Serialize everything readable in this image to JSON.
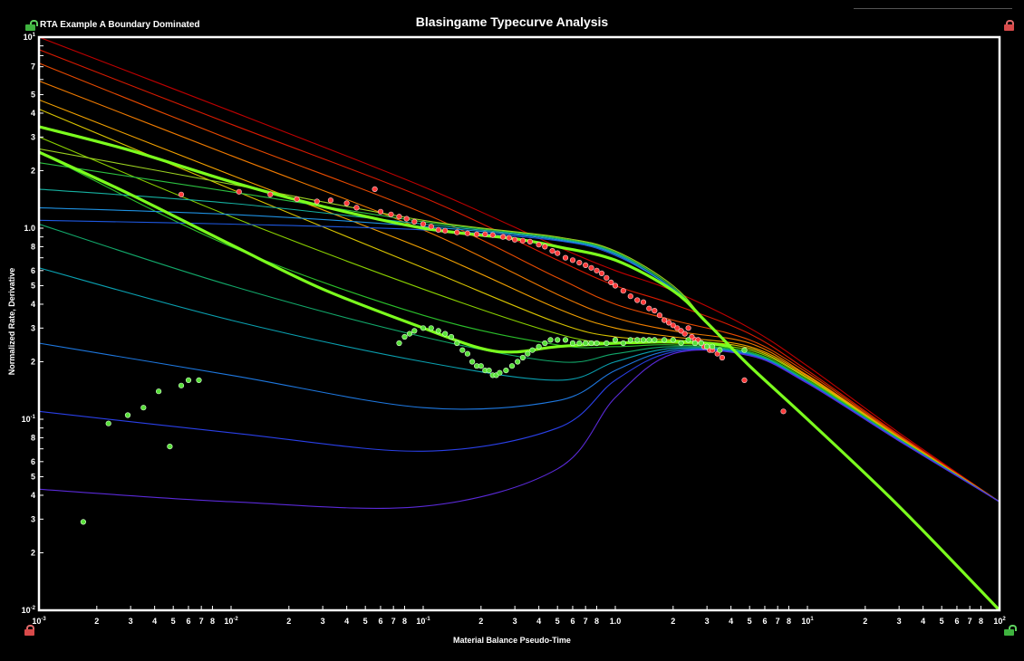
{
  "window": {
    "chart_title": "Blasingame Typecurve Analysis",
    "subtitle": "RTA Example A Boundary Dominated",
    "lock_top_left": "unlocked-icon",
    "lock_top_right": "locked-icon",
    "lock_bottom_left": "locked-icon",
    "lock_bottom_right": "unlocked-icon"
  },
  "chart_data": {
    "type": "scatter",
    "title": "Blasingame Typecurve Analysis",
    "xlabel": "Material Balance Pseudo-Time",
    "ylabel": "Normalized Rate, Derivative",
    "xscale": "log",
    "yscale": "log",
    "xlim": [
      0.001,
      100
    ],
    "ylim": [
      0.01,
      10
    ],
    "grid": false,
    "x_tick_labels": [
      "10-3",
      "2",
      "3",
      "4",
      "5",
      "6",
      "7",
      "8",
      "10-2",
      "2",
      "3",
      "4",
      "5",
      "6",
      "7",
      "8",
      "10-1",
      "2",
      "3",
      "4",
      "5",
      "6",
      "7",
      "8",
      "1.0",
      "2",
      "3",
      "4",
      "5",
      "6",
      "7",
      "8",
      "101",
      "2",
      "3",
      "4",
      "5",
      "6",
      "7",
      "8",
      "102"
    ],
    "y_tick_labels": [
      "10-2",
      "2",
      "3",
      "4",
      "5",
      "6",
      "8",
      "10-1",
      "2",
      "3",
      "4",
      "5",
      "6",
      "8",
      "1.0",
      "2",
      "3",
      "4",
      "5",
      "7",
      "101"
    ],
    "colors": {
      "background": "#000000",
      "frame": "#ffffff",
      "rate_points": "#ff3b3b",
      "derivative_points": "#59e03a",
      "matched_curves": "#7cff1e"
    },
    "rate_typecurves": [
      {
        "color": "#c00000",
        "t": [
          0.001,
          0.01,
          0.1,
          0.5,
          1,
          2,
          5,
          10,
          30,
          100
        ],
        "y": [
          10.0,
          4.1,
          1.65,
          0.8,
          0.6,
          0.47,
          0.3,
          0.19,
          0.085,
          0.037
        ]
      },
      {
        "color": "#d81a00",
        "t": [
          0.001,
          0.01,
          0.1,
          0.5,
          1,
          2,
          5,
          10,
          30,
          100
        ],
        "y": [
          8.6,
          3.5,
          1.45,
          0.68,
          0.5,
          0.4,
          0.28,
          0.18,
          0.083,
          0.037
        ]
      },
      {
        "color": "#e84a00",
        "t": [
          0.001,
          0.01,
          0.1,
          0.5,
          1,
          2,
          5,
          10,
          30,
          100
        ],
        "y": [
          7.3,
          2.9,
          1.2,
          0.55,
          0.4,
          0.33,
          0.26,
          0.175,
          0.082,
          0.037
        ]
      },
      {
        "color": "#ef7a00",
        "t": [
          0.001,
          0.01,
          0.1,
          0.5,
          1,
          2,
          5,
          10,
          30,
          100
        ],
        "y": [
          5.9,
          2.4,
          0.98,
          0.45,
          0.34,
          0.29,
          0.25,
          0.17,
          0.081,
          0.037
        ]
      },
      {
        "color": "#f3a200",
        "t": [
          0.001,
          0.01,
          0.1,
          0.5,
          1,
          2,
          5,
          10,
          30,
          100
        ],
        "y": [
          4.7,
          1.9,
          0.78,
          0.38,
          0.3,
          0.27,
          0.24,
          0.168,
          0.08,
          0.037
        ]
      },
      {
        "color": "#d8c400",
        "t": [
          0.001,
          0.01,
          0.1,
          0.5,
          1,
          2,
          5,
          10,
          30,
          100
        ],
        "y": [
          4.2,
          1.6,
          0.62,
          0.32,
          0.27,
          0.26,
          0.235,
          0.165,
          0.08,
          0.037
        ]
      },
      {
        "color": "#8ad000",
        "t": [
          0.001,
          0.01,
          0.1,
          0.5,
          1,
          2,
          5,
          10,
          30,
          100
        ],
        "y": [
          3.0,
          1.15,
          0.48,
          0.28,
          0.25,
          0.25,
          0.23,
          0.163,
          0.079,
          0.037
        ]
      },
      {
        "color": "#2bbf2b",
        "t": [
          0.001,
          0.01,
          0.1,
          0.5,
          1,
          2,
          5,
          10,
          30,
          100
        ],
        "y": [
          2.5,
          0.8,
          0.35,
          0.245,
          0.24,
          0.245,
          0.225,
          0.16,
          0.079,
          0.037
        ]
      },
      {
        "color": "#12a86a",
        "t": [
          0.001,
          0.01,
          0.1,
          0.5,
          1,
          2,
          5,
          10,
          30,
          100
        ],
        "y": [
          1.05,
          0.5,
          0.27,
          0.2,
          0.22,
          0.24,
          0.222,
          0.158,
          0.078,
          0.037
        ]
      },
      {
        "color": "#0aa0b0",
        "t": [
          0.001,
          0.01,
          0.1,
          0.5,
          1,
          2,
          5,
          10,
          30,
          100
        ],
        "y": [
          0.62,
          0.33,
          0.2,
          0.16,
          0.2,
          0.235,
          0.22,
          0.157,
          0.078,
          0.037
        ]
      },
      {
        "color": "#1e78e0",
        "t": [
          0.001,
          0.01,
          0.1,
          0.5,
          1,
          2,
          5,
          10,
          30,
          100
        ],
        "y": [
          0.25,
          0.17,
          0.115,
          0.125,
          0.18,
          0.23,
          0.218,
          0.156,
          0.078,
          0.037
        ]
      },
      {
        "color": "#2a40e8",
        "t": [
          0.001,
          0.01,
          0.1,
          0.5,
          1,
          2,
          5,
          10,
          30,
          100
        ],
        "y": [
          0.11,
          0.085,
          0.068,
          0.09,
          0.16,
          0.225,
          0.216,
          0.155,
          0.077,
          0.037
        ]
      },
      {
        "color": "#5a2ad8",
        "t": [
          0.001,
          0.01,
          0.1,
          0.5,
          1,
          2,
          5,
          10,
          30,
          100
        ],
        "y": [
          0.043,
          0.037,
          0.035,
          0.055,
          0.13,
          0.22,
          0.215,
          0.154,
          0.077,
          0.037
        ]
      }
    ],
    "integral_typecurves": [
      {
        "color": "#1e58e0",
        "t": [
          0.001,
          0.01,
          0.1,
          0.5,
          1,
          2,
          3,
          5,
          10,
          30,
          100
        ],
        "y": [
          1.1,
          1.05,
          0.98,
          0.86,
          0.72,
          0.48,
          0.32,
          0.19,
          0.1,
          0.035,
          0.01
        ]
      },
      {
        "color": "#1e90e0",
        "t": [
          0.001,
          0.01,
          0.1,
          0.5,
          1,
          2,
          3,
          5,
          10,
          30,
          100
        ],
        "y": [
          1.28,
          1.18,
          1.02,
          0.87,
          0.73,
          0.48,
          0.32,
          0.19,
          0.1,
          0.035,
          0.01
        ]
      },
      {
        "color": "#16b0a0",
        "t": [
          0.001,
          0.01,
          0.1,
          0.5,
          1,
          2,
          3,
          5,
          10,
          30,
          100
        ],
        "y": [
          1.6,
          1.35,
          1.05,
          0.88,
          0.74,
          0.49,
          0.32,
          0.19,
          0.1,
          0.035,
          0.01
        ]
      },
      {
        "color": "#2cc040",
        "t": [
          0.001,
          0.01,
          0.1,
          0.5,
          1,
          2,
          3,
          5,
          10,
          30,
          100
        ],
        "y": [
          2.2,
          1.55,
          1.08,
          0.89,
          0.75,
          0.49,
          0.32,
          0.19,
          0.1,
          0.035,
          0.01
        ]
      },
      {
        "color": "#9ad020",
        "t": [
          0.001,
          0.01,
          0.1,
          0.5,
          1,
          2,
          3,
          5,
          10,
          30,
          100
        ],
        "y": [
          2.6,
          1.7,
          1.1,
          0.9,
          0.76,
          0.5,
          0.32,
          0.19,
          0.1,
          0.035,
          0.01
        ]
      }
    ],
    "matched_rate_curve": {
      "t": [
        0.001,
        0.003,
        0.01,
        0.03,
        0.1,
        0.3,
        0.5,
        1,
        2,
        3,
        5,
        10,
        30,
        100
      ],
      "y": [
        3.4,
        2.55,
        1.75,
        1.3,
        1.0,
        0.88,
        0.8,
        0.68,
        0.47,
        0.32,
        0.19,
        0.1,
        0.035,
        0.01
      ]
    },
    "matched_derivative_curve": {
      "t": [
        0.001,
        0.003,
        0.01,
        0.03,
        0.1,
        0.2,
        0.3,
        0.5,
        1,
        2,
        3,
        4
      ],
      "y": [
        2.5,
        1.5,
        0.82,
        0.48,
        0.3,
        0.235,
        0.225,
        0.24,
        0.25,
        0.255,
        0.25,
        0.24
      ]
    },
    "rate_points": {
      "name": "",
      "t": [
        0.0055,
        0.011,
        0.016,
        0.022,
        0.028,
        0.033,
        0.04,
        0.045,
        0.056,
        0.06,
        0.068,
        0.075,
        0.082,
        0.09,
        0.1,
        0.11,
        0.12,
        0.13,
        0.15,
        0.17,
        0.19,
        0.21,
        0.23,
        0.26,
        0.28,
        0.3,
        0.33,
        0.36,
        0.4,
        0.43,
        0.47,
        0.5,
        0.55,
        0.6,
        0.65,
        0.7,
        0.75,
        0.8,
        0.85,
        0.9,
        0.95,
        1.0,
        1.1,
        1.2,
        1.3,
        1.4,
        1.5,
        1.6,
        1.7,
        1.8,
        1.9,
        2.0,
        2.1,
        2.2,
        2.3,
        2.4,
        2.5,
        2.6,
        2.7,
        2.8,
        2.9,
        3.0,
        3.1,
        3.2,
        3.4,
        3.6,
        4.7,
        7.5
      ],
      "y": [
        1.5,
        1.55,
        1.5,
        1.42,
        1.38,
        1.4,
        1.35,
        1.28,
        1.6,
        1.22,
        1.18,
        1.15,
        1.12,
        1.08,
        1.05,
        1.02,
        0.98,
        0.97,
        0.95,
        0.94,
        0.93,
        0.93,
        0.92,
        0.9,
        0.89,
        0.87,
        0.86,
        0.85,
        0.82,
        0.8,
        0.76,
        0.74,
        0.7,
        0.68,
        0.66,
        0.64,
        0.62,
        0.6,
        0.58,
        0.55,
        0.52,
        0.5,
        0.47,
        0.44,
        0.42,
        0.41,
        0.38,
        0.37,
        0.35,
        0.33,
        0.32,
        0.31,
        0.3,
        0.29,
        0.28,
        0.3,
        0.27,
        0.26,
        0.26,
        0.25,
        0.24,
        0.24,
        0.23,
        0.23,
        0.22,
        0.21,
        0.16,
        0.11
      ]
    },
    "derivative_points": {
      "name": "",
      "t": [
        0.0017,
        0.0023,
        0.0029,
        0.0035,
        0.0042,
        0.0048,
        0.0055,
        0.006,
        0.0068,
        0.075,
        0.08,
        0.085,
        0.09,
        0.1,
        0.11,
        0.12,
        0.13,
        0.14,
        0.15,
        0.16,
        0.17,
        0.18,
        0.19,
        0.2,
        0.21,
        0.22,
        0.23,
        0.24,
        0.25,
        0.27,
        0.29,
        0.31,
        0.33,
        0.35,
        0.37,
        0.4,
        0.43,
        0.46,
        0.5,
        0.55,
        0.6,
        0.65,
        0.7,
        0.75,
        0.8,
        0.9,
        1.0,
        1.1,
        1.2,
        1.3,
        1.4,
        1.5,
        1.6,
        1.8,
        2.0,
        2.2,
        2.4,
        2.6,
        2.8,
        3.0,
        3.2,
        3.5,
        4.7
      ],
      "y": [
        0.029,
        0.095,
        0.105,
        0.115,
        0.14,
        0.072,
        0.15,
        0.16,
        0.16,
        0.25,
        0.27,
        0.28,
        0.29,
        0.3,
        0.3,
        0.29,
        0.28,
        0.27,
        0.25,
        0.23,
        0.22,
        0.2,
        0.19,
        0.19,
        0.18,
        0.18,
        0.17,
        0.17,
        0.175,
        0.18,
        0.19,
        0.2,
        0.21,
        0.22,
        0.23,
        0.24,
        0.25,
        0.26,
        0.26,
        0.26,
        0.25,
        0.25,
        0.25,
        0.25,
        0.25,
        0.25,
        0.26,
        0.25,
        0.26,
        0.26,
        0.26,
        0.26,
        0.26,
        0.26,
        0.26,
        0.25,
        0.26,
        0.25,
        0.25,
        0.24,
        0.24,
        0.23,
        0.23
      ]
    }
  }
}
